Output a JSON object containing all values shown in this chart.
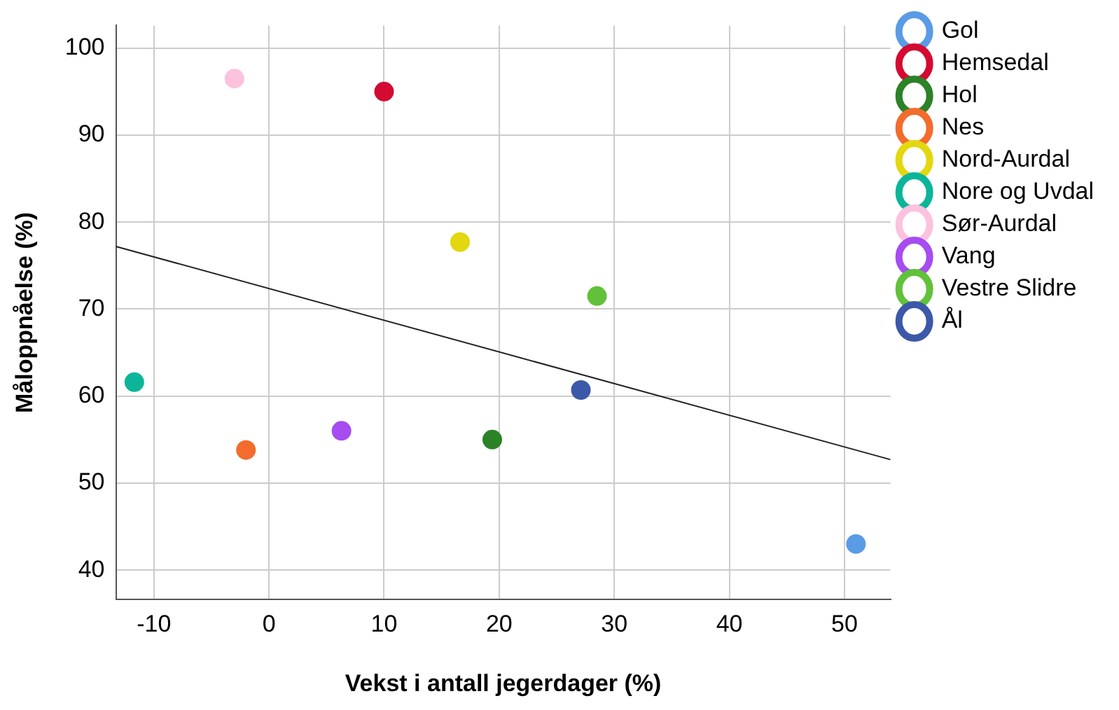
{
  "chart_data": {
    "type": "scatter",
    "xlabel": "Vekst i antall jegerdager (%)",
    "ylabel": "Måloppnåelse (%)",
    "xlim": [
      -13.3,
      54
    ],
    "ylim": [
      36.6,
      102.6
    ],
    "xticks": [
      -10,
      0,
      10,
      20,
      30,
      40,
      50
    ],
    "yticks": [
      40,
      50,
      60,
      70,
      80,
      90,
      100
    ],
    "grid": true,
    "legend": "right",
    "marker": "circle",
    "series": [
      {
        "name": "Gol",
        "color": "#5a9be6",
        "x": [
          51
        ],
        "values": [
          43
        ]
      },
      {
        "name": "Hemsedal",
        "color": "#d40a32",
        "x": [
          10
        ],
        "values": [
          95
        ]
      },
      {
        "name": "Hol",
        "color": "#2b8227",
        "x": [
          19.4
        ],
        "values": [
          55
        ]
      },
      {
        "name": "Nes",
        "color": "#f26c2d",
        "x": [
          -2
        ],
        "values": [
          53.8
        ]
      },
      {
        "name": "Nord-Aurdal",
        "color": "#e3d70f",
        "x": [
          16.6
        ],
        "values": [
          77.7
        ]
      },
      {
        "name": "Nore og Uvdal",
        "color": "#0cb59a",
        "x": [
          -11.7
        ],
        "values": [
          61.6
        ]
      },
      {
        "name": "Sør-Aurdal",
        "color": "#fcc2de",
        "x": [
          -3
        ],
        "values": [
          96.5
        ]
      },
      {
        "name": "Vang",
        "color": "#a64cf0",
        "x": [
          6.3
        ],
        "values": [
          56
        ]
      },
      {
        "name": "Vestre Slidre",
        "color": "#62c13b",
        "x": [
          28.5
        ],
        "values": [
          71.5
        ]
      },
      {
        "name": "Ål",
        "color": "#3c58a8",
        "x": [
          27.1
        ],
        "values": [
          60.7
        ]
      },
      {
        "type": "line",
        "color": "#222222",
        "x": [
          -13.3,
          54
        ],
        "values": [
          77.2,
          52.7
        ],
        "marker": "none"
      }
    ]
  }
}
